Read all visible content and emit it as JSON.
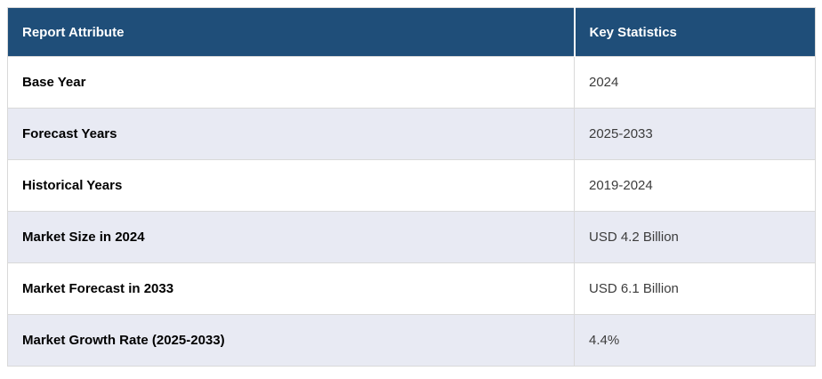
{
  "table": {
    "columns": [
      {
        "label": "Report Attribute"
      },
      {
        "label": "Key Statistics"
      }
    ],
    "rows": [
      {
        "attribute": "Base Year",
        "value": "2024"
      },
      {
        "attribute": "Forecast Years",
        "value": "2025-2033"
      },
      {
        "attribute": "Historical Years",
        "value": "2019-2024"
      },
      {
        "attribute": "Market Size in 2024",
        "value": "USD 4.2 Billion"
      },
      {
        "attribute": "Market Forecast in 2033",
        "value": "USD 6.1 Billion"
      },
      {
        "attribute": "Market Growth Rate (2025-2033)",
        "value": "4.4%"
      }
    ]
  },
  "colors": {
    "header_bg": "#1F4E79",
    "header_text": "#FFFFFF",
    "row_alt_bg": "#E8EAF3",
    "row_bg": "#FFFFFF",
    "border": "#D9D9D9",
    "attribute_text": "#000000",
    "value_text": "#3C3C3C"
  },
  "chart_data": {
    "type": "table",
    "title": "",
    "columns": [
      "Report Attribute",
      "Key Statistics"
    ],
    "rows": [
      [
        "Base Year",
        "2024"
      ],
      [
        "Forecast Years",
        "2025-2033"
      ],
      [
        "Historical Years",
        "2019-2024"
      ],
      [
        "Market Size in 2024",
        "USD 4.2 Billion"
      ],
      [
        "Market Forecast in 2033",
        "USD 6.1 Billion"
      ],
      [
        "Market Growth Rate (2025-2033)",
        "4.4%"
      ]
    ]
  }
}
